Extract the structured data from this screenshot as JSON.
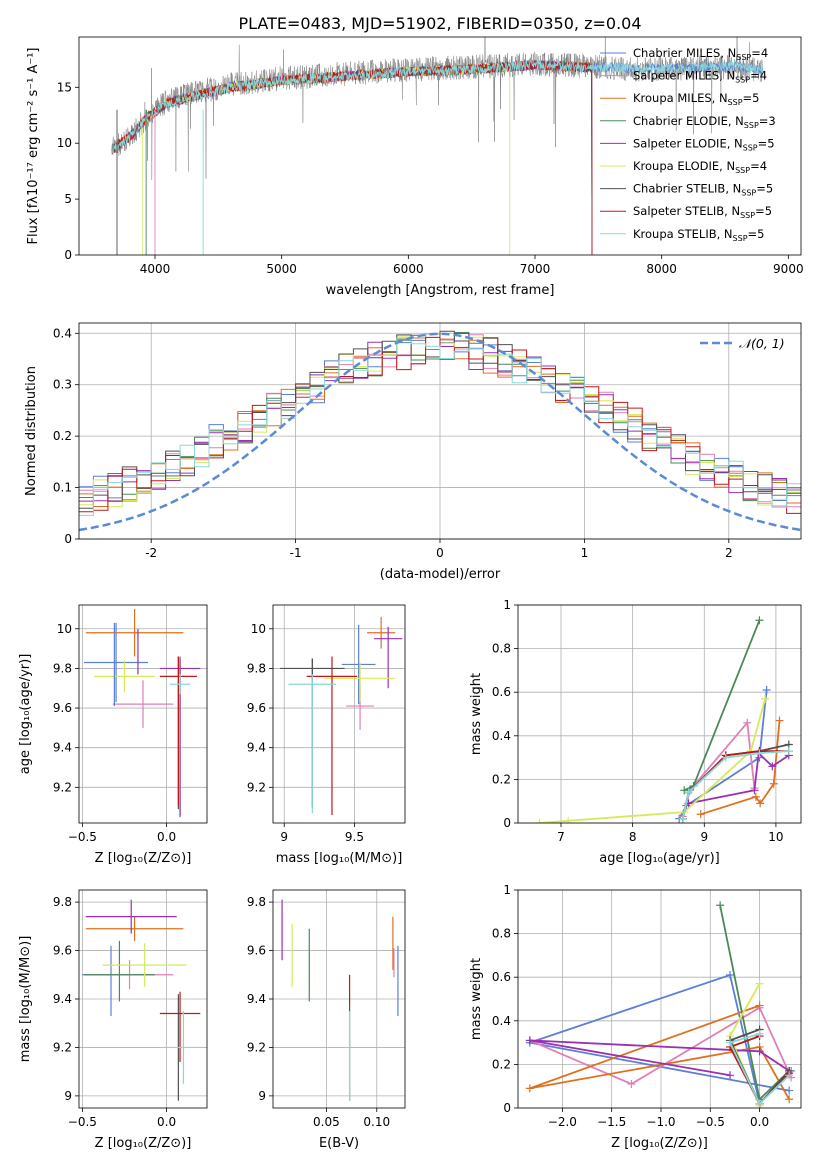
{
  "figure": {
    "title": "PLATE=0483, MJD=51902, FIBERID=0350, z=0.04",
    "series_colors": [
      "#5b7fd4",
      "#e07fb8",
      "#e07020",
      "#4a8a5a",
      "#9a30b0",
      "#d8e85a",
      "#505050",
      "#c01818",
      "#88d8d8"
    ]
  },
  "chart_data": [
    {
      "name": "spectrum",
      "type": "line",
      "title": "PLATE=0483, MJD=51902, FIBERID=0350, z=0.04",
      "xlabel": "wavelength [Angstrom, rest frame]",
      "ylabel": "Flux [fλ10⁻¹⁷ erg cm⁻² s⁻¹ A⁻¹]",
      "xlim": [
        3400,
        9100
      ],
      "ylim": [
        0,
        19.5
      ],
      "xticks": [
        4000,
        5000,
        6000,
        7000,
        8000,
        9000
      ],
      "yticks": [
        0,
        5,
        10,
        15
      ],
      "legend_position": "top-right",
      "legend": [
        {
          "label": "Chabrier MILES, N_SSP=4",
          "color": "#5b7fd4"
        },
        {
          "label": "Salpeter MILES, N_SSP=4",
          "color": "#e07fb8"
        },
        {
          "label": "Kroupa MILES, N_SSP=5",
          "color": "#e07020"
        },
        {
          "label": "Chabrier ELODIE, N_SSP=3",
          "color": "#4a8a5a"
        },
        {
          "label": "Salpeter ELODIE, N_SSP=5",
          "color": "#9a30b0"
        },
        {
          "label": "Kroupa ELODIE, N_SSP=4",
          "color": "#d8e85a"
        },
        {
          "label": "Chabrier STELIB, N_SSP=5",
          "color": "#505050"
        },
        {
          "label": "Salpeter STELIB, N_SSP=5",
          "color": "#c01818"
        },
        {
          "label": "Kroupa STELIB, N_SSP=5",
          "color": "#88d8d8"
        }
      ],
      "data_continuum": [
        [
          3660,
          9.5
        ],
        [
          3800,
          10.5
        ],
        [
          3950,
          12.5
        ],
        [
          4100,
          13.8
        ],
        [
          4300,
          14.5
        ],
        [
          4600,
          15.2
        ],
        [
          5000,
          15.8
        ],
        [
          5500,
          16.2
        ],
        [
          6000,
          16.6
        ],
        [
          6500,
          16.8
        ],
        [
          7000,
          17.1
        ],
        [
          7400,
          16.9
        ],
        [
          7800,
          16.6
        ],
        [
          8200,
          16.7
        ],
        [
          8600,
          16.8
        ],
        [
          8800,
          16.4
        ]
      ],
      "model_continuum": [
        [
          3660,
          9.4
        ],
        [
          3800,
          10.6
        ],
        [
          3950,
          12.4
        ],
        [
          4100,
          13.6
        ],
        [
          4300,
          14.2
        ],
        [
          4600,
          15.0
        ],
        [
          5000,
          15.6
        ],
        [
          5500,
          16.0
        ],
        [
          6000,
          16.4
        ],
        [
          6500,
          16.6
        ],
        [
          7000,
          17.0
        ],
        [
          7400,
          16.8
        ],
        [
          8000,
          16.7
        ],
        [
          8600,
          16.9
        ],
        [
          8800,
          16.5
        ]
      ],
      "model_end_wavelengths": [
        8800,
        7450,
        7450,
        7450,
        7450,
        6800,
        7450,
        7450,
        8800
      ],
      "model_start_wavelengths": [
        3660,
        3660,
        3660,
        3660,
        3660,
        3900,
        3660,
        3660,
        3660
      ]
    },
    {
      "name": "residuals",
      "type": "histogram",
      "xlabel": "(data-model)/error",
      "ylabel": "Normed distribution",
      "xlim": [
        -2.5,
        2.5
      ],
      "ylim": [
        0,
        0.42
      ],
      "xticks": [
        -2,
        -1,
        0,
        1,
        2
      ],
      "yticks": [
        0.0,
        0.1,
        0.2,
        0.3,
        0.4
      ],
      "legend_position": "top-right",
      "legend": [
        {
          "label": "𝒩(0, 1)",
          "color": "#5b8ad6",
          "style": "dashed"
        }
      ],
      "gaussian": {
        "mean": 0,
        "sigma": 1
      },
      "bin_width": 0.1,
      "bin_start": -2.5
    },
    {
      "name": "age_vs_Z",
      "type": "errorbar",
      "xlabel": "Z [log₁₀(Z/Z⊙)]",
      "ylabel": "age  [log₁₀(age/yr)]",
      "xlim": [
        -0.52,
        0.24
      ],
      "ylim": [
        9.02,
        10.12
      ],
      "xticks": [
        -0.5,
        0.0
      ],
      "xticklabels": [
        "−0.5",
        "0.0"
      ],
      "yticks": [
        9.2,
        9.4,
        9.6,
        9.8,
        10.0
      ],
      "points": [
        {
          "x": -0.3,
          "y": 9.83,
          "xerr": 0.19,
          "yerr": [
            0.2,
            0.2
          ]
        },
        {
          "x": -0.14,
          "y": 9.62,
          "xerr": 0.18,
          "yerr": [
            0.12,
            0.12
          ]
        },
        {
          "x": -0.19,
          "y": 9.98,
          "xerr": 0.29,
          "yerr": [
            0.12,
            0.12
          ]
        },
        {
          "x": 0.08,
          "y": 9.76,
          "xerr": 0.0,
          "yerr": [
            0.7,
            0.1
          ]
        },
        {
          "x": 0.08,
          "y": 9.8,
          "xerr": 0.12,
          "yerr": [
            0.75,
            0.05
          ]
        },
        {
          "x": -0.25,
          "y": 9.76,
          "xerr": 0.18,
          "yerr": [
            0.08,
            0.08
          ]
        },
        {
          "x": 0.07,
          "y": 9.74,
          "xerr": 0.0,
          "yerr": [
            0.65,
            0.12
          ]
        },
        {
          "x": 0.07,
          "y": 9.76,
          "xerr": 0.11,
          "yerr": [
            0.65,
            0.1
          ]
        },
        {
          "x": 0.08,
          "y": 9.72,
          "xerr": 0.06,
          "yerr": [
            0.05,
            0.05
          ]
        }
      ],
      "extra": [
        {
          "series": 0,
          "x": -0.31,
          "y": 9.86,
          "xerr": 0,
          "yerr": [
            0.25,
            0.17
          ]
        },
        {
          "series": 4,
          "x": -0.17,
          "y": 9.95,
          "xerr": 0.0,
          "yerr": [
            0.18,
            0.05
          ]
        },
        {
          "series": 3,
          "x": -0.49,
          "y": 9.75,
          "xerr": 0.0,
          "yerr": [
            0.0,
            0.0
          ]
        }
      ]
    },
    {
      "name": "age_vs_mass",
      "type": "errorbar",
      "xlabel": "mass [log₁₀(M/M⊙)]",
      "xlim": [
        8.92,
        9.86
      ],
      "ylim": [
        9.02,
        10.12
      ],
      "xticks": [
        9.0,
        9.5
      ],
      "yticks": [
        9.2,
        9.4,
        9.6,
        9.8,
        10.0
      ],
      "points": [
        {
          "x": 9.53,
          "y": 9.82,
          "xerr": 0.12,
          "yerr": [
            0.2,
            0.2
          ]
        },
        {
          "x": 9.54,
          "y": 9.61,
          "xerr": 0.1,
          "yerr": [
            0.12,
            0.12
          ]
        },
        {
          "x": 9.69,
          "y": 9.98,
          "xerr": 0.1,
          "yerr": [
            0.08,
            0.08
          ]
        },
        {
          "x": 9.2,
          "y": 9.8,
          "xerr": 0.0,
          "yerr": [
            0.05,
            0.05
          ]
        },
        {
          "x": 9.74,
          "y": 9.95,
          "xerr": 0.1,
          "yerr": [
            0.25,
            0.06
          ]
        },
        {
          "x": 9.54,
          "y": 9.75,
          "xerr": 0.25,
          "yerr": [
            0.12,
            0.08
          ]
        },
        {
          "x": 9.2,
          "y": 9.8,
          "xerr": 0.23,
          "yerr": [
            0.7,
            0.05
          ]
        },
        {
          "x": 9.34,
          "y": 9.76,
          "xerr": 0.18,
          "yerr": [
            0.7,
            0.1
          ]
        },
        {
          "x": 9.2,
          "y": 9.72,
          "xerr": 0.17,
          "yerr": [
            0.65,
            0.05
          ]
        }
      ]
    },
    {
      "name": "weight_vs_age",
      "type": "line",
      "xlabel": "age  [log₁₀(age/yr)]",
      "ylabel": "mass weight",
      "xlim": [
        6.4,
        10.35
      ],
      "ylim": [
        0,
        1.0
      ],
      "xticks": [
        7,
        8,
        9,
        10
      ],
      "yticks": [
        0.0,
        0.2,
        0.4,
        0.6,
        0.8,
        1.0
      ],
      "series": [
        {
          "x": [
            8.65,
            8.75,
            9.77,
            9.87
          ],
          "y": [
            0.02,
            0.08,
            0.3,
            0.61
          ]
        },
        {
          "x": [
            8.7,
            8.8,
            9.6,
            9.7
          ],
          "y": [
            0.03,
            0.15,
            0.46,
            0.16
          ]
        },
        {
          "x": [
            8.95,
            9.72,
            9.78,
            9.97,
            10.05
          ],
          "y": [
            0.04,
            0.12,
            0.09,
            0.18,
            0.47
          ]
        },
        {
          "x": [
            8.72,
            8.85,
            9.77
          ],
          "y": [
            0.15,
            0.17,
            0.93
          ]
        },
        {
          "x": [
            8.78,
            9.7,
            9.76,
            9.95,
            10.18
          ],
          "y": [
            0.09,
            0.15,
            0.32,
            0.26,
            0.31
          ]
        },
        {
          "x": [
            6.7,
            7.1,
            8.72,
            9.65,
            9.85
          ],
          "y": [
            0.0,
            0.01,
            0.05,
            0.33,
            0.57
          ]
        },
        {
          "x": [
            8.7,
            8.78,
            9.3,
            9.77,
            10.18
          ],
          "y": [
            0.02,
            0.14,
            0.31,
            0.33,
            0.36
          ]
        },
        {
          "x": [
            8.7,
            8.78,
            9.3,
            9.77,
            10.18
          ],
          "y": [
            0.02,
            0.14,
            0.31,
            0.33,
            0.33
          ]
        },
        {
          "x": [
            8.7,
            8.78,
            9.3,
            9.77,
            10.18
          ],
          "y": [
            0.02,
            0.14,
            0.3,
            0.32,
            0.33
          ]
        }
      ]
    },
    {
      "name": "mass_vs_Z",
      "type": "errorbar",
      "xlabel": "Z [log₁₀(Z/Z⊙)]",
      "ylabel": "mass [log₁₀(M/M⊙)]",
      "xlim": [
        -0.52,
        0.24
      ],
      "ylim": [
        8.95,
        9.85
      ],
      "xticks": [
        -0.5,
        0.0
      ],
      "xticklabels": [
        "−0.5",
        "0.0"
      ],
      "yticks": [
        9.0,
        9.2,
        9.4,
        9.6,
        9.8
      ],
      "points": [
        {
          "x": -0.33,
          "y": 9.5,
          "xerr": 0.17,
          "yerr": [
            0.17,
            0.12
          ]
        },
        {
          "x": -0.22,
          "y": 9.5,
          "xerr": 0.26,
          "yerr": [
            0.06,
            0.06
          ]
        },
        {
          "x": -0.19,
          "y": 9.69,
          "xerr": 0.29,
          "yerr": [
            0.05,
            0.05
          ]
        },
        {
          "x": -0.28,
          "y": 9.5,
          "xerr": 0.21,
          "yerr": [
            0.11,
            0.14
          ]
        },
        {
          "x": -0.21,
          "y": 9.74,
          "xerr": 0.27,
          "yerr": [
            0.07,
            0.07
          ]
        },
        {
          "x": -0.13,
          "y": 9.54,
          "xerr": 0.25,
          "yerr": [
            0.09,
            0.09
          ]
        },
        {
          "x": 0.07,
          "y": 9.2,
          "xerr": 0.0,
          "yerr": [
            0.22,
            0.22
          ]
        },
        {
          "x": 0.08,
          "y": 9.34,
          "xerr": 0.12,
          "yerr": [
            0.2,
            0.09
          ]
        },
        {
          "x": 0.1,
          "y": 9.2,
          "xerr": 0.12,
          "yerr": [
            0.15,
            0.15
          ]
        }
      ]
    },
    {
      "name": "mass_vs_ebv",
      "type": "errorbar",
      "xlabel": "E(B-V)",
      "xlim": [
        -0.003,
        0.128
      ],
      "ylim": [
        8.95,
        9.85
      ],
      "xticks": [
        0.05,
        0.1
      ],
      "xticklabels": [
        "0.05",
        "0.10"
      ],
      "yticks": [
        9.0,
        9.2,
        9.4,
        9.6,
        9.8
      ],
      "points": [
        {
          "x": 0.121,
          "y": 9.5,
          "xerr": 0.0,
          "yerr": [
            0.17,
            0.12
          ]
        },
        {
          "x": 0.117,
          "y": 9.55,
          "xerr": 0.0,
          "yerr": [
            0.06,
            0.06
          ]
        },
        {
          "x": 0.116,
          "y": 9.62,
          "xerr": 0.0,
          "yerr": [
            0.1,
            0.12
          ]
        },
        {
          "x": 0.033,
          "y": 9.54,
          "xerr": 0.0,
          "yerr": [
            0.15,
            0.15
          ]
        },
        {
          "x": 0.006,
          "y": 9.68,
          "xerr": 0.0,
          "yerr": [
            0.12,
            0.13
          ]
        },
        {
          "x": 0.016,
          "y": 9.58,
          "xerr": 0.0,
          "yerr": [
            0.13,
            0.13
          ]
        },
        {
          "x": 0.073,
          "y": 9.2,
          "xerr": 0.0,
          "yerr": [
            0.22,
            0.17
          ]
        },
        {
          "x": 0.073,
          "y": 9.43,
          "xerr": 0.0,
          "yerr": [
            0.06,
            0.07
          ]
        },
        {
          "x": 0.073,
          "y": 9.2,
          "xerr": 0.0,
          "yerr": [
            0.22,
            0.15
          ]
        }
      ]
    },
    {
      "name": "weight_vs_Z",
      "type": "line",
      "xlabel": "Z [log₁₀(Z/Z⊙)]",
      "ylabel": "mass weight",
      "xlim": [
        -2.45,
        0.42
      ],
      "ylim": [
        0,
        1.0
      ],
      "xticks": [
        -2.0,
        -1.5,
        -1.0,
        -0.5,
        0.0
      ],
      "xticklabels": [
        "−2.0",
        "−1.5",
        "−1.0",
        "−0.5",
        "0.0"
      ],
      "yticks": [
        0.0,
        0.2,
        0.4,
        0.6,
        0.8,
        1.0
      ],
      "series": [
        {
          "x": [
            0.32,
            0.0,
            -0.3,
            -2.33,
            0.3
          ],
          "y": [
            0.17,
            0.02,
            0.61,
            0.3,
            0.08
          ]
        },
        {
          "x": [
            0.32,
            0.0,
            -1.3,
            -2.33
          ],
          "y": [
            0.14,
            0.46,
            0.11,
            0.31
          ]
        },
        {
          "x": [
            0.0,
            -2.33,
            0.0,
            0.3
          ],
          "y": [
            0.47,
            0.09,
            0.28,
            0.04
          ]
        },
        {
          "x": [
            -0.4,
            0.0,
            0.3
          ],
          "y": [
            0.93,
            0.04,
            0.17
          ]
        },
        {
          "x": [
            -0.3,
            -2.33,
            0.0,
            0.3
          ],
          "y": [
            0.15,
            0.31,
            0.26,
            0.17
          ]
        },
        {
          "x": [
            0.0,
            -0.3,
            0.0
          ],
          "y": [
            0.57,
            0.33,
            0.01
          ]
        },
        {
          "x": [
            0.0,
            -0.3,
            0.0,
            0.3
          ],
          "y": [
            0.36,
            0.31,
            0.02,
            0.17
          ]
        },
        {
          "x": [
            0.0,
            -0.3,
            0.0,
            0.3
          ],
          "y": [
            0.33,
            0.28,
            0.02,
            0.16
          ]
        },
        {
          "x": [
            0.0,
            -0.3,
            0.0,
            0.3
          ],
          "y": [
            0.34,
            0.3,
            0.02,
            0.15
          ]
        }
      ]
    }
  ]
}
